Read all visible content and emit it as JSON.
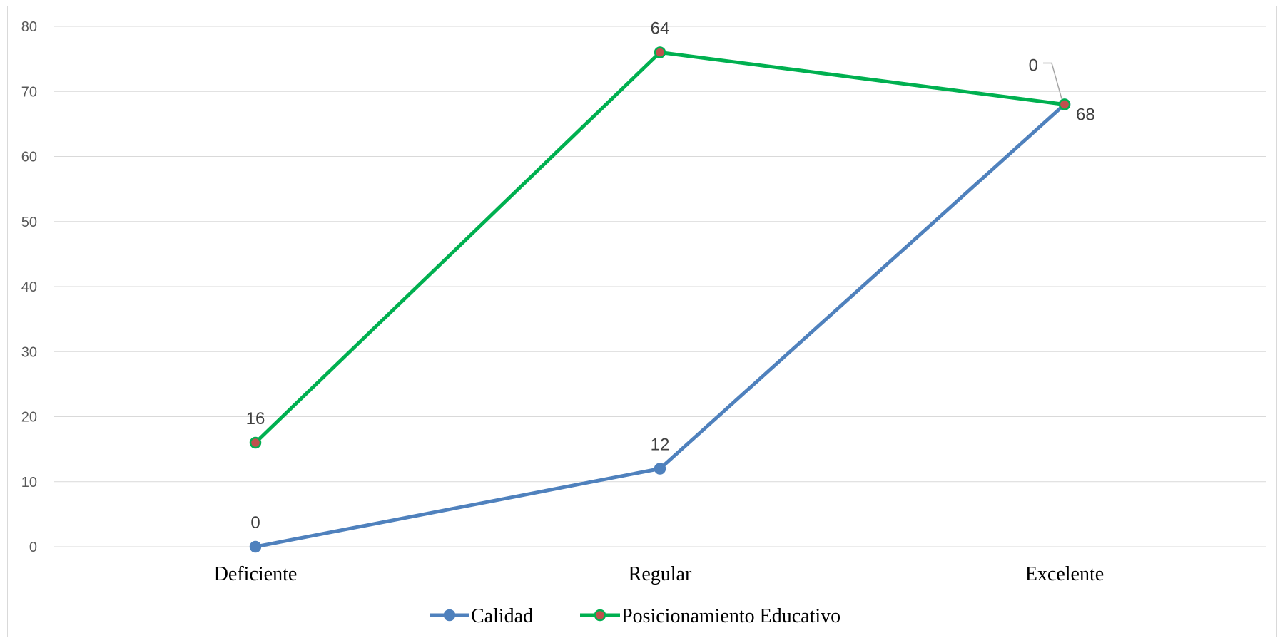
{
  "chart_data": {
    "type": "line",
    "categories": [
      "Deficiente",
      "Regular",
      "Excelente"
    ],
    "ylim": [
      0,
      80
    ],
    "yticks": [
      0,
      10,
      20,
      30,
      40,
      50,
      60,
      70,
      80
    ],
    "grid": true,
    "legend_position": "bottom",
    "series": [
      {
        "name": "Calidad",
        "values": [
          0,
          12,
          68
        ],
        "labels": [
          "0",
          "12",
          "68"
        ],
        "line_color": "#4f81bd",
        "marker_color": "#4f81bd"
      },
      {
        "name": "Posicionamiento Educativo",
        "values": [
          16,
          76,
          68
        ],
        "labels": [
          "16",
          "64",
          "0"
        ],
        "line_color": "#00b050",
        "marker_color": "#c0504d"
      }
    ]
  }
}
